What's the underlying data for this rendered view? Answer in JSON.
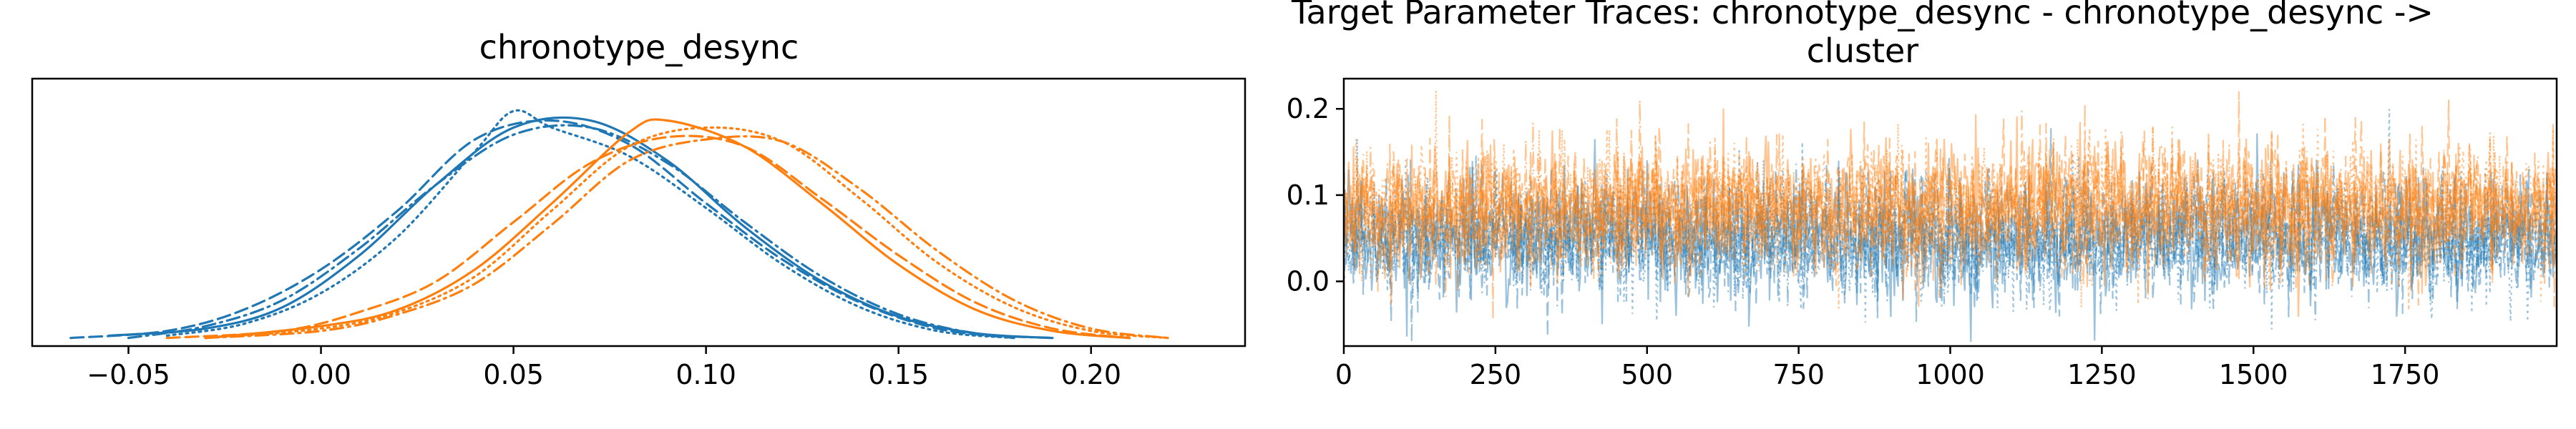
{
  "figure": {
    "left_title": "chronotype_desync",
    "right_title_line1": "Target Parameter Traces: chronotype_desync - chronotype_desync ->",
    "right_title_line2": "cluster"
  },
  "chart_data": [
    {
      "type": "line",
      "title": "chronotype_desync",
      "description_free": true,
      "xlim": [
        -0.075,
        0.24
      ],
      "x_ticks": [
        -0.05,
        0.0,
        0.05,
        0.1,
        0.15,
        0.2
      ],
      "x_tick_labels": [
        "−0.05",
        "0.00",
        "0.05",
        "0.10",
        "0.15",
        "0.20"
      ],
      "y_ticks": [],
      "grid": false,
      "series": [
        {
          "color": "#1f77b4",
          "linestyle": "solid",
          "x": [
            -0.055,
            -0.03,
            -0.01,
            0.01,
            0.03,
            0.05,
            0.07,
            0.09,
            0.11,
            0.13,
            0.15,
            0.17,
            0.19
          ],
          "density": [
            0.02,
            0.05,
            0.14,
            0.36,
            0.66,
            0.9,
            0.93,
            0.76,
            0.48,
            0.25,
            0.1,
            0.03,
            0.01
          ]
        },
        {
          "color": "#1f77b4",
          "linestyle": "dashed",
          "x": [
            -0.065,
            -0.04,
            -0.02,
            0.0,
            0.02,
            0.04,
            0.06,
            0.08,
            0.1,
            0.12,
            0.14,
            0.16,
            0.18
          ],
          "density": [
            0.01,
            0.04,
            0.13,
            0.3,
            0.55,
            0.85,
            0.93,
            0.83,
            0.58,
            0.34,
            0.16,
            0.05,
            0.01
          ]
        },
        {
          "color": "#1f77b4",
          "linestyle": "dotted",
          "x": [
            -0.04,
            -0.02,
            0.0,
            0.02,
            0.04,
            0.05,
            0.06,
            0.08,
            0.1,
            0.12,
            0.14,
            0.16,
            0.18
          ],
          "density": [
            0.02,
            0.07,
            0.2,
            0.44,
            0.8,
            0.97,
            0.9,
            0.78,
            0.56,
            0.32,
            0.14,
            0.04,
            0.01
          ]
        },
        {
          "color": "#1f77b4",
          "linestyle": "dashdot",
          "x": [
            -0.05,
            -0.03,
            -0.01,
            0.01,
            0.03,
            0.05,
            0.07,
            0.09,
            0.11,
            0.13,
            0.15,
            0.17,
            0.19
          ],
          "density": [
            0.01,
            0.06,
            0.17,
            0.39,
            0.66,
            0.87,
            0.9,
            0.75,
            0.5,
            0.27,
            0.11,
            0.03,
            0.01
          ]
        },
        {
          "color": "#ff7f0e",
          "linestyle": "solid",
          "x": [
            -0.03,
            0.0,
            0.02,
            0.04,
            0.06,
            0.08,
            0.09,
            0.11,
            0.13,
            0.15,
            0.17,
            0.19,
            0.21
          ],
          "density": [
            0.01,
            0.06,
            0.13,
            0.3,
            0.58,
            0.88,
            0.93,
            0.82,
            0.58,
            0.32,
            0.13,
            0.04,
            0.01
          ]
        },
        {
          "color": "#ff7f0e",
          "linestyle": "dashed",
          "x": [
            -0.04,
            -0.01,
            0.01,
            0.03,
            0.05,
            0.07,
            0.09,
            0.11,
            0.13,
            0.15,
            0.17,
            0.19,
            0.21
          ],
          "density": [
            0.01,
            0.04,
            0.12,
            0.25,
            0.5,
            0.75,
            0.86,
            0.82,
            0.6,
            0.36,
            0.16,
            0.05,
            0.01
          ]
        },
        {
          "color": "#ff7f0e",
          "linestyle": "dotted",
          "x": [
            -0.03,
            0.0,
            0.02,
            0.04,
            0.06,
            0.08,
            0.1,
            0.12,
            0.14,
            0.16,
            0.18,
            0.2,
            0.22
          ],
          "density": [
            0.01,
            0.05,
            0.12,
            0.27,
            0.55,
            0.82,
            0.9,
            0.84,
            0.6,
            0.33,
            0.14,
            0.04,
            0.01
          ]
        },
        {
          "color": "#ff7f0e",
          "linestyle": "dashdot",
          "x": [
            -0.03,
            0.0,
            0.02,
            0.04,
            0.06,
            0.08,
            0.1,
            0.12,
            0.14,
            0.16,
            0.18,
            0.2,
            0.22
          ],
          "density": [
            0.01,
            0.04,
            0.11,
            0.24,
            0.49,
            0.76,
            0.85,
            0.84,
            0.64,
            0.38,
            0.17,
            0.05,
            0.01
          ]
        }
      ]
    },
    {
      "type": "line",
      "title": "Target Parameter Traces: chronotype_desync - chronotype_desync -> cluster",
      "xlim": [
        0,
        2000
      ],
      "ylim": [
        -0.075,
        0.235
      ],
      "x_ticks": [
        0,
        250,
        500,
        750,
        1000,
        1250,
        1500,
        1750
      ],
      "x_tick_labels": [
        "0",
        "250",
        "500",
        "750",
        "1000",
        "1250",
        "1500",
        "1750"
      ],
      "y_ticks": [
        0.0,
        0.1,
        0.2
      ],
      "y_tick_labels": [
        "0.0",
        "0.1",
        "0.2"
      ],
      "grid": false,
      "draws_per_chain": 2000,
      "series": [
        {
          "color": "#1f77b4",
          "alpha": 0.45,
          "mean": 0.05,
          "sd": 0.035,
          "chains": 4
        },
        {
          "color": "#ff7f0e",
          "alpha": 0.45,
          "mean": 0.085,
          "sd": 0.038,
          "chains": 4
        }
      ]
    }
  ]
}
